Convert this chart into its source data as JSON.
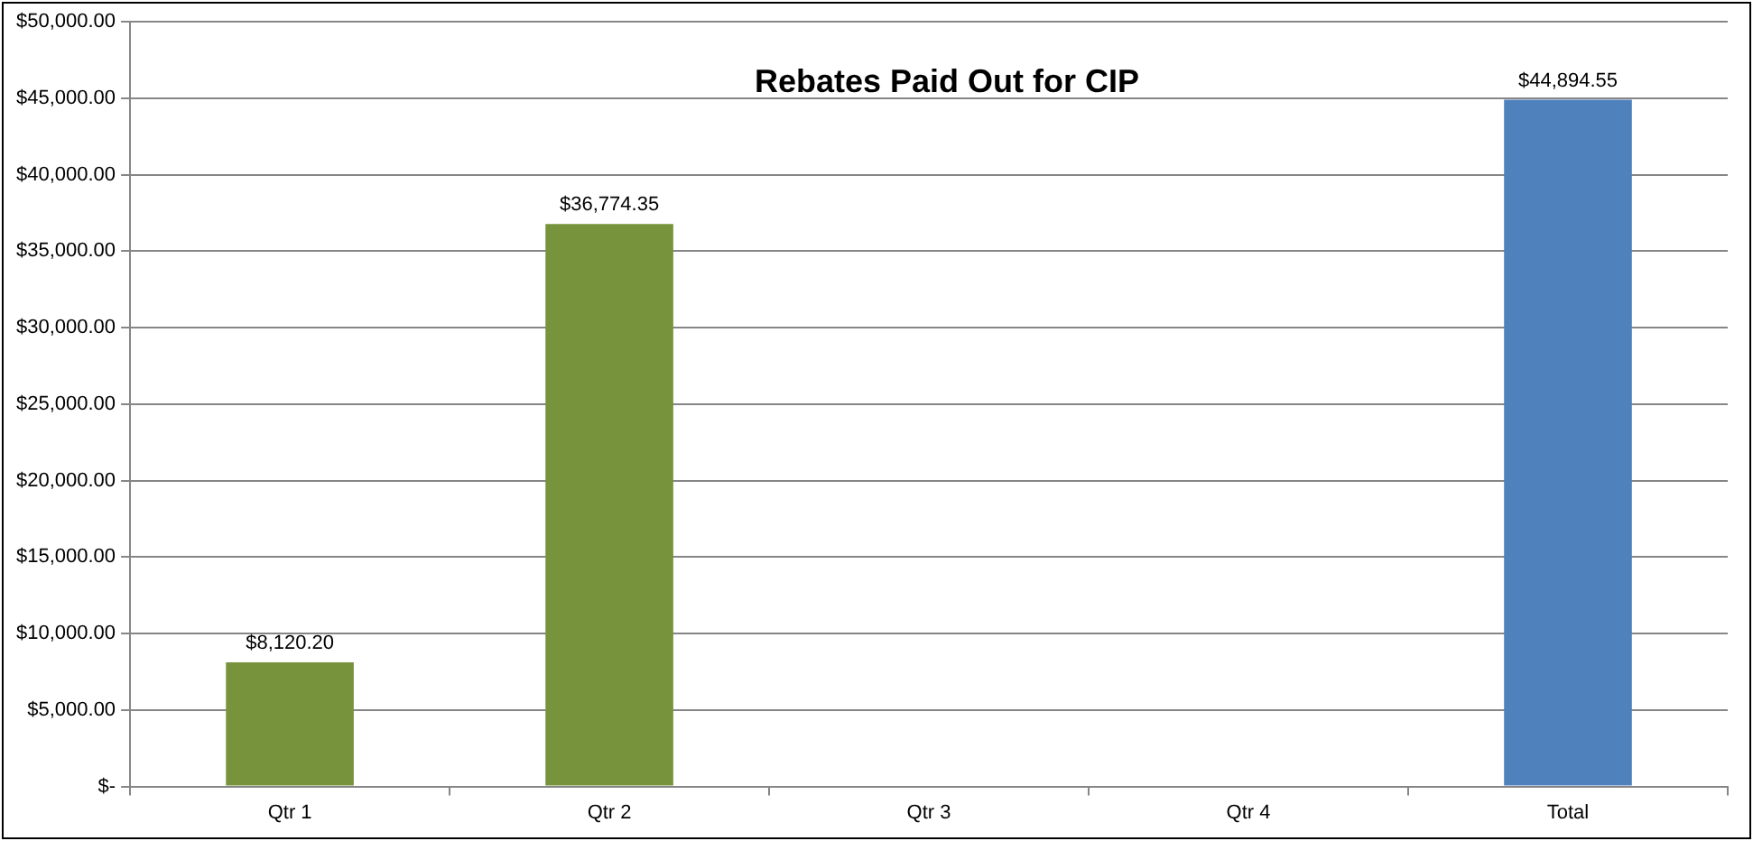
{
  "chart_data": {
    "type": "bar",
    "title": "Rebates Paid Out for CIP",
    "categories": [
      "Qtr 1",
      "Qtr 2",
      "Qtr 3",
      "Qtr 4",
      "Total"
    ],
    "values": [
      8120.2,
      36774.35,
      null,
      null,
      44894.55
    ],
    "colors": [
      "#77933c",
      "#77933c",
      "#77933c",
      "#77933c",
      "#4f81bd"
    ],
    "value_labels": [
      "$8,120.20",
      "$36,774.35",
      null,
      null,
      "$44,894.55"
    ],
    "ylim": [
      0,
      50000
    ],
    "yticks": [
      {
        "value": 0,
        "label": "$-"
      },
      {
        "value": 5000,
        "label": "$5,000.00"
      },
      {
        "value": 10000,
        "label": "$10,000.00"
      },
      {
        "value": 15000,
        "label": "$15,000.00"
      },
      {
        "value": 20000,
        "label": "$20,000.00"
      },
      {
        "value": 25000,
        "label": "$25,000.00"
      },
      {
        "value": 30000,
        "label": "$30,000.00"
      },
      {
        "value": 35000,
        "label": "$35,000.00"
      },
      {
        "value": 40000,
        "label": "$40,000.00"
      },
      {
        "value": 45000,
        "label": "$45,000.00"
      },
      {
        "value": 50000,
        "label": "$50,000.00"
      }
    ],
    "grid": "y",
    "legend": false
  }
}
